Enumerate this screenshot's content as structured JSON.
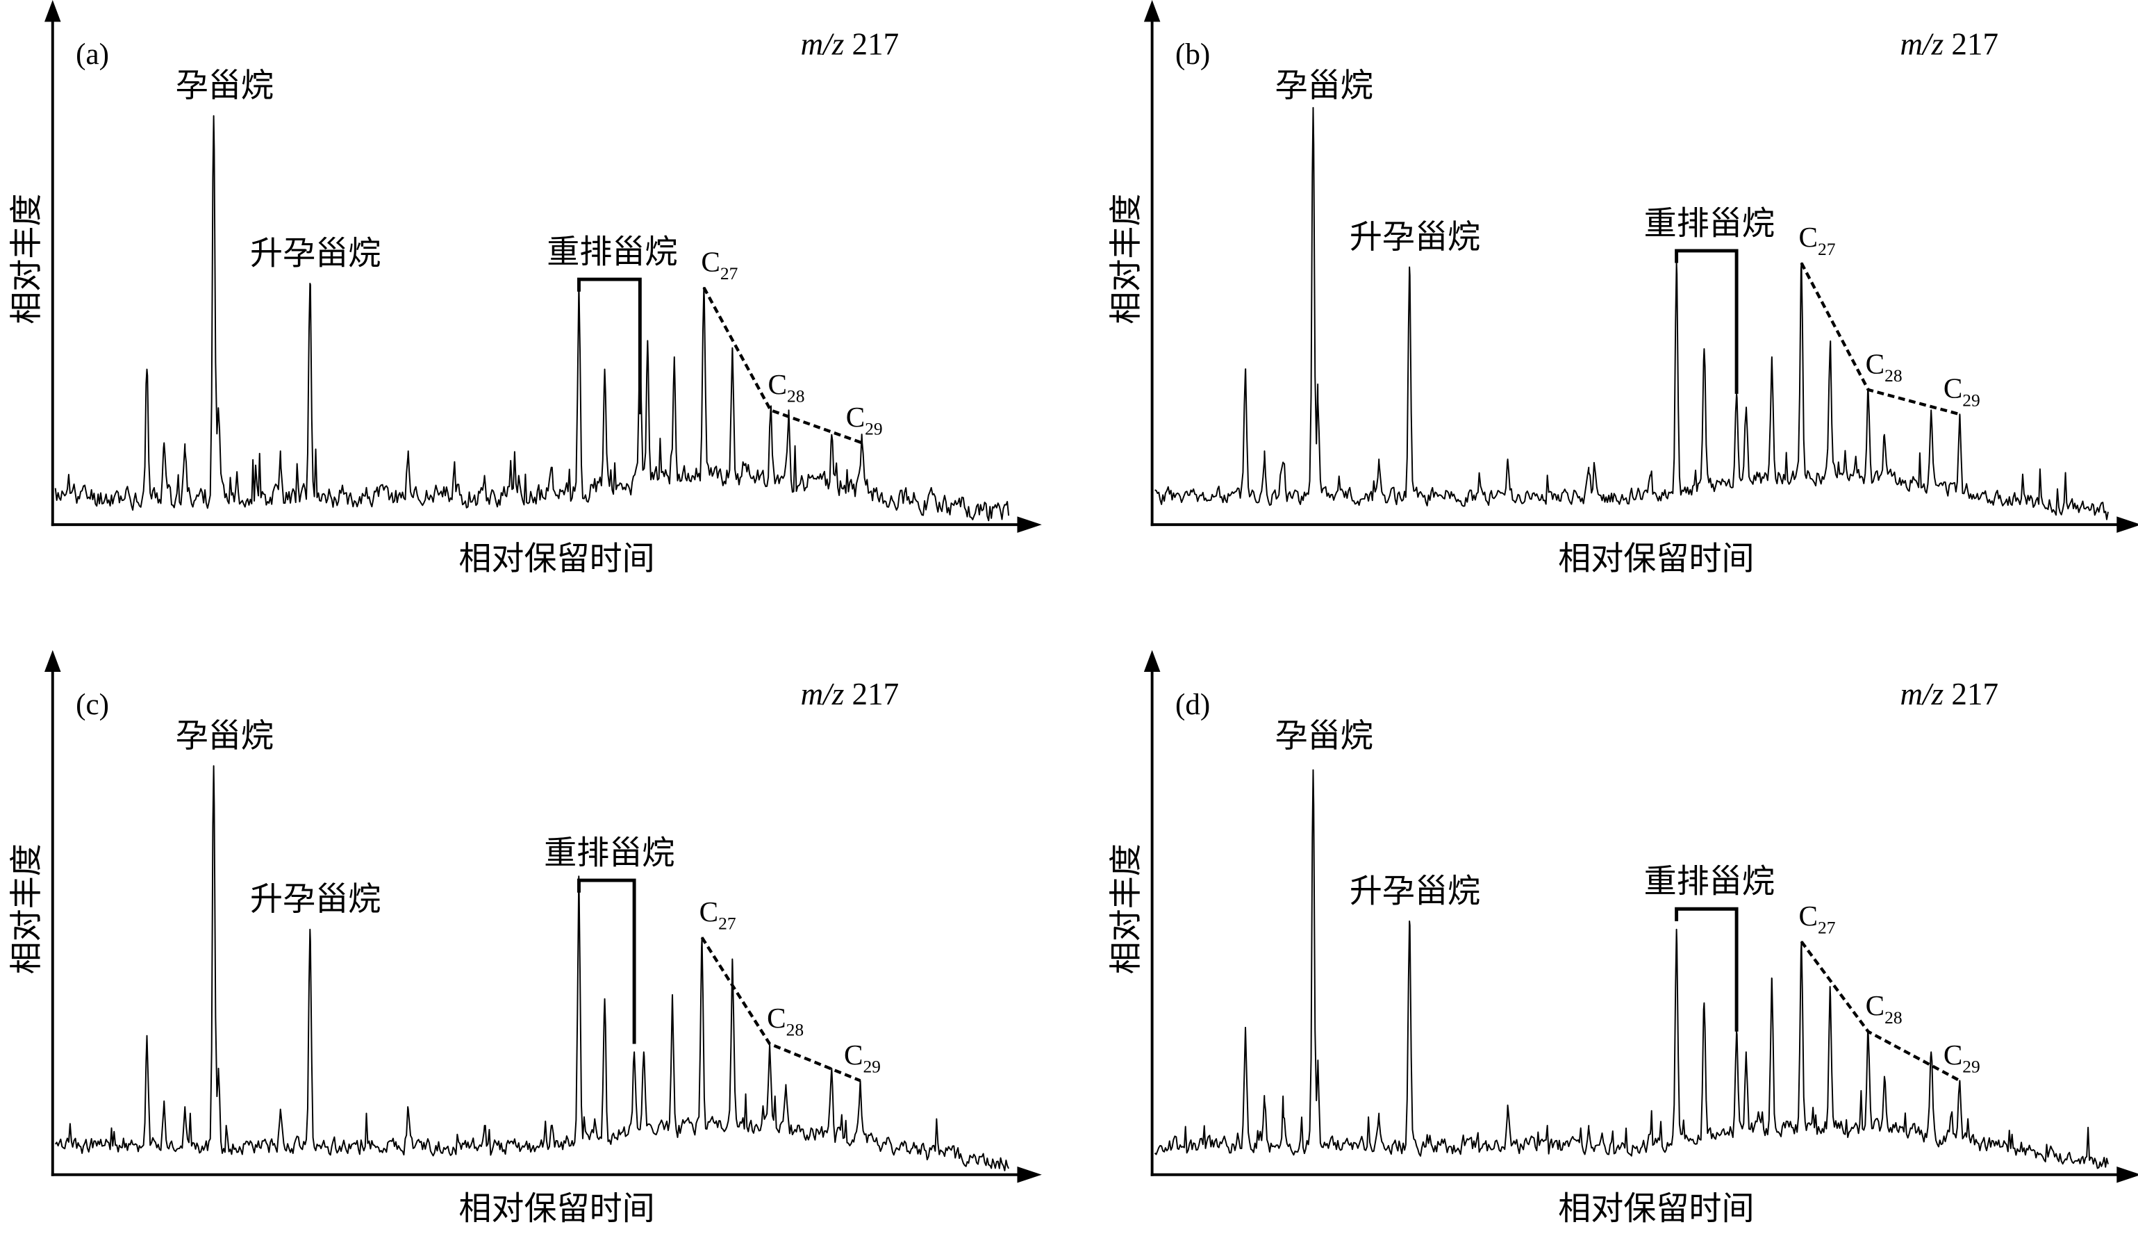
{
  "chart_data": {
    "type": "line",
    "description_axes": {
      "xlabel": "相对保留时间",
      "ylabel": "相对丰度",
      "xlim": [
        0,
        100
      ],
      "ylim": [
        0,
        100
      ]
    },
    "ion": {
      "prefix": "m/z",
      "value": "217"
    },
    "labels": {
      "pregnane": "孕甾烷",
      "homopregnane": "升孕甾烷",
      "diasteranes": "重排甾烷",
      "c27": {
        "base": "C",
        "sub": "27"
      },
      "c28": {
        "base": "C",
        "sub": "28"
      },
      "c29": {
        "base": "C",
        "sub": "29"
      }
    },
    "panels": [
      {
        "id": "(a)",
        "seed": 11,
        "noise": 1.25,
        "peaks": [
          [
            9.6,
            38
          ],
          [
            11.4,
            20
          ],
          [
            13.6,
            18
          ],
          [
            16.6,
            100
          ],
          [
            17.1,
            28
          ],
          [
            23.6,
            18
          ],
          [
            26.7,
            59
          ],
          [
            37,
            18
          ],
          [
            45,
            12
          ],
          [
            52,
            14
          ],
          [
            54.9,
            58
          ],
          [
            57.6,
            38
          ],
          [
            61.3,
            45
          ],
          [
            62.1,
            45
          ],
          [
            64.9,
            41
          ],
          [
            68,
            58
          ],
          [
            71,
            43
          ],
          [
            75,
            28
          ],
          [
            76.9,
            28
          ],
          [
            81.4,
            22
          ],
          [
            84.6,
            20
          ]
        ],
        "pregnane_rt": 16.6,
        "homopregnane_rt": 26.7,
        "diasterane_bracket": {
          "rt_start": 54.9,
          "rt_end": 61.3,
          "top": 60,
          "end_level": 27
        },
        "c27": [
          68,
          58
        ],
        "c28": [
          75,
          28
        ],
        "c29": [
          84.6,
          20
        ]
      },
      {
        "id": "(b)",
        "seed": 23,
        "noise": 0.9,
        "peaks": [
          [
            9.5,
            38
          ],
          [
            11.5,
            18
          ],
          [
            13.5,
            15
          ],
          [
            16.6,
            102
          ],
          [
            17.1,
            30
          ],
          [
            23.5,
            16
          ],
          [
            26.7,
            63
          ],
          [
            37,
            16
          ],
          [
            45.5,
            14
          ],
          [
            52,
            12
          ],
          [
            54.7,
            64
          ],
          [
            57.6,
            43
          ],
          [
            61,
            32
          ],
          [
            62,
            28
          ],
          [
            64.7,
            41
          ],
          [
            67.8,
            64
          ],
          [
            70.8,
            43
          ],
          [
            74.8,
            33
          ],
          [
            76.5,
            22
          ],
          [
            81.4,
            28
          ],
          [
            84.4,
            27
          ]
        ],
        "pregnane_rt": 16.6,
        "homopregnane_rt": 26.7,
        "diasterane_bracket": {
          "rt_start": 54.7,
          "rt_end": 61,
          "top": 67,
          "end_level": 32
        },
        "c27": [
          67.8,
          64
        ],
        "c28": [
          74.8,
          33
        ],
        "c29": [
          84.4,
          27
        ]
      },
      {
        "id": "(c)",
        "seed": 37,
        "noise": 0.9,
        "peaks": [
          [
            9.6,
            34
          ],
          [
            11.4,
            18
          ],
          [
            13.6,
            16
          ],
          [
            16.6,
            100
          ],
          [
            17.1,
            26
          ],
          [
            23.6,
            16
          ],
          [
            26.7,
            60
          ],
          [
            37,
            16
          ],
          [
            45,
            12
          ],
          [
            52,
            12
          ],
          [
            54.9,
            72
          ],
          [
            57.6,
            43
          ],
          [
            60.7,
            30
          ],
          [
            61.7,
            30
          ],
          [
            64.7,
            44
          ],
          [
            67.8,
            58
          ],
          [
            71,
            52
          ],
          [
            74.9,
            32
          ],
          [
            76.6,
            22
          ],
          [
            81.4,
            26
          ],
          [
            84.4,
            23
          ]
        ],
        "pregnane_rt": 16.6,
        "homopregnane_rt": 26.7,
        "diasterane_bracket": {
          "rt_start": 54.9,
          "rt_end": 60.7,
          "top": 72,
          "end_level": 32
        },
        "c27": [
          67.8,
          58
        ],
        "c28": [
          74.9,
          32
        ],
        "c29": [
          84.4,
          23
        ]
      },
      {
        "id": "(d)",
        "seed": 53,
        "noise": 0.9,
        "peaks": [
          [
            9.5,
            36
          ],
          [
            11.5,
            18
          ],
          [
            13.5,
            14
          ],
          [
            16.6,
            99
          ],
          [
            17.1,
            28
          ],
          [
            23.5,
            15
          ],
          [
            26.7,
            62
          ],
          [
            37,
            17
          ],
          [
            45.5,
            12
          ],
          [
            52,
            11
          ],
          [
            54.7,
            60
          ],
          [
            57.6,
            42
          ],
          [
            61,
            35
          ],
          [
            62,
            30
          ],
          [
            64.7,
            48
          ],
          [
            67.8,
            57
          ],
          [
            70.8,
            46
          ],
          [
            74.8,
            35
          ],
          [
            76.5,
            24
          ],
          [
            81.4,
            30
          ],
          [
            84.4,
            23
          ]
        ],
        "pregnane_rt": 16.6,
        "homopregnane_rt": 26.7,
        "diasterane_bracket": {
          "rt_start": 54.7,
          "rt_end": 61,
          "top": 65,
          "end_level": 35
        },
        "c27": [
          67.8,
          57
        ],
        "c28": [
          74.8,
          35
        ],
        "c29": [
          84.4,
          23
        ]
      }
    ]
  }
}
